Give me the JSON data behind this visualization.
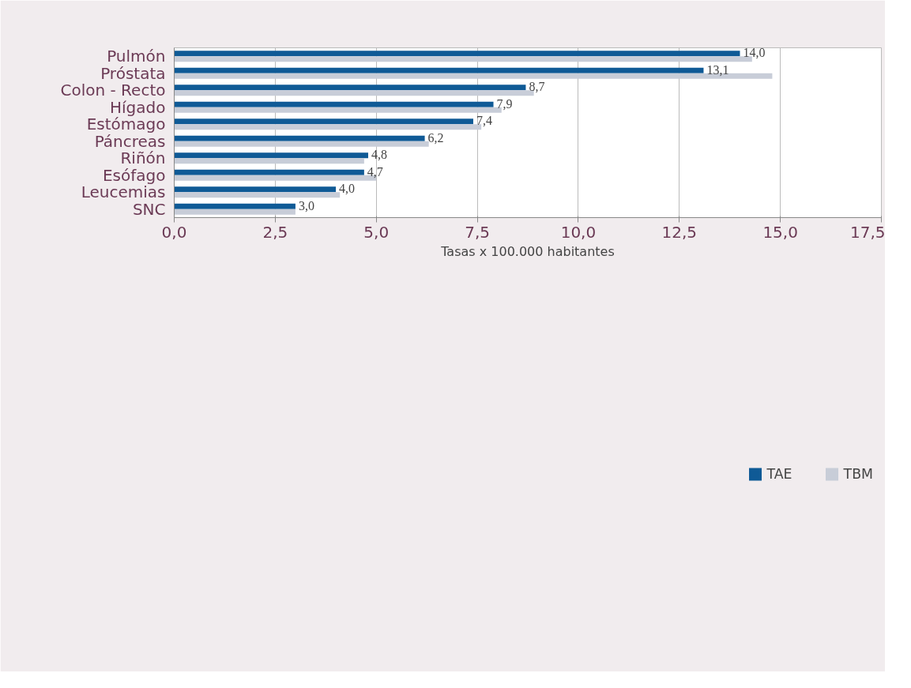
{
  "chart_data": {
    "type": "bar",
    "orientation": "horizontal",
    "xlabel": "Tasas x 100.000 habitantes",
    "categories": [
      "Pulmón",
      "Próstata",
      "Colon - Recto",
      "Hígado",
      "Estómago",
      "Páncreas",
      "Riñón",
      "Esófago",
      "Leucemias",
      "SNC"
    ],
    "series": [
      {
        "name": "TAE",
        "color": "#0f5a96",
        "values": [
          14.0,
          13.1,
          8.7,
          7.9,
          7.4,
          6.2,
          4.8,
          4.7,
          4.0,
          3.0
        ],
        "value_labels": [
          "14,0",
          "13,1",
          "8,7",
          "7,9",
          "7,4",
          "6,2",
          "4,8",
          "4,7",
          "4,0",
          "3,0"
        ]
      },
      {
        "name": "TBM",
        "color": "#c8cdd8",
        "values": [
          14.3,
          14.8,
          8.9,
          8.1,
          7.6,
          6.3,
          4.7,
          5.0,
          4.1,
          3.0
        ]
      }
    ],
    "xlim": [
      0,
      17.5
    ],
    "xticks": [
      {
        "value": 0,
        "label": "0,0"
      },
      {
        "value": 2.5,
        "label": "2,5"
      },
      {
        "value": 5,
        "label": "5,0"
      },
      {
        "value": 7.5,
        "label": "7,5"
      },
      {
        "value": 10,
        "label": "10,0"
      },
      {
        "value": 12.5,
        "label": "12,5"
      },
      {
        "value": 15,
        "label": "15,0"
      },
      {
        "value": 17.5,
        "label": "17,5"
      }
    ],
    "grid": "x",
    "legend": "bottom"
  }
}
